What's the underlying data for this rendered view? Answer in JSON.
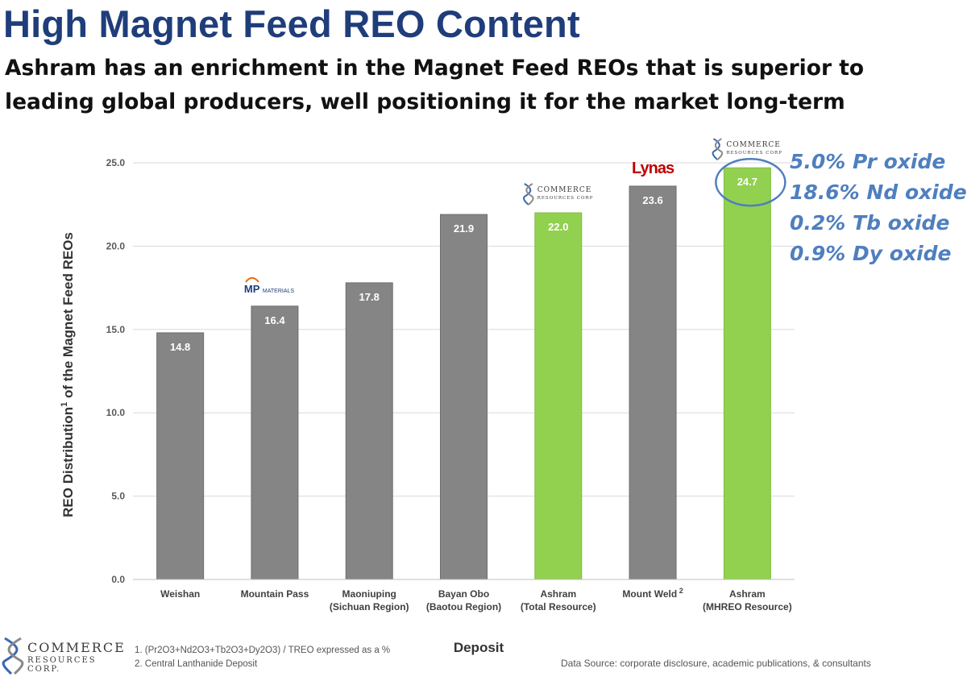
{
  "header": {
    "title": "High Magnet Feed REO Content",
    "subtitle": "Ashram has an enrichment in the Magnet Feed REOs that is superior to leading global producers, well positioning it for the market long-term"
  },
  "colors": {
    "grey_bar": "#858585",
    "green_bar": "#92d050",
    "title": "#1f3d7a",
    "oxide_text": "#4f7fbe",
    "circle": "#4f7fbe"
  },
  "chart_data": {
    "type": "bar",
    "xlabel": "Deposit",
    "ylabel_main": "REO Distribution",
    "ylabel_sup": "1",
    "ylabel_rest": " of the Magnet Feed REOs",
    "ylim": [
      0,
      25
    ],
    "yticks": [
      "0.0",
      "5.0",
      "10.0",
      "15.0",
      "20.0",
      "25.0"
    ],
    "grid": true,
    "categories": [
      [
        "Weishan"
      ],
      [
        "Mountain Pass"
      ],
      [
        "Maoniuping",
        "(Sichuan Region)"
      ],
      [
        "Bayan Obo",
        "(Baotou Region)"
      ],
      [
        "Ashram",
        "(Total Resource)"
      ],
      [
        "Mount Weld"
      ],
      [
        "Ashram",
        "(MHREO Resource)"
      ]
    ],
    "category_superscripts": [
      "",
      "",
      "",
      "",
      "",
      "2",
      ""
    ],
    "values": [
      14.8,
      16.4,
      17.8,
      21.9,
      22.0,
      23.6,
      24.7
    ],
    "value_labels": [
      "14.8",
      "16.4",
      "17.8",
      "21.9",
      "22.0",
      "23.6",
      "24.7"
    ],
    "bar_colors": [
      "grey",
      "grey",
      "grey",
      "grey",
      "green",
      "grey",
      "green"
    ],
    "bar_logos": [
      null,
      {
        "brand": "MP",
        "text": "MATERIALS"
      },
      null,
      null,
      {
        "brand": "COMMERCE",
        "text": "RESOURCES CORP"
      },
      {
        "brand": "Lynas",
        "text": ""
      },
      {
        "brand": "COMMERCE",
        "text": "RESOURCES CORP"
      }
    ],
    "highlighted_bar": 6
  },
  "oxides": [
    "5.0% Pr oxide",
    "18.6% Nd oxide",
    "0.2% Tb oxide",
    "0.9% Dy oxide"
  ],
  "footer": {
    "logo_name": "COMMERCE",
    "logo_sub": "RESOURCES CORP.",
    "footnote_1": "1. (Pr2O3+Nd2O3+Tb2O3+Dy2O3) / TREO expressed as a %",
    "footnote_2": "2. Central Lanthanide Deposit",
    "source": "Data Source: corporate disclosure, academic publications, & consultants"
  }
}
